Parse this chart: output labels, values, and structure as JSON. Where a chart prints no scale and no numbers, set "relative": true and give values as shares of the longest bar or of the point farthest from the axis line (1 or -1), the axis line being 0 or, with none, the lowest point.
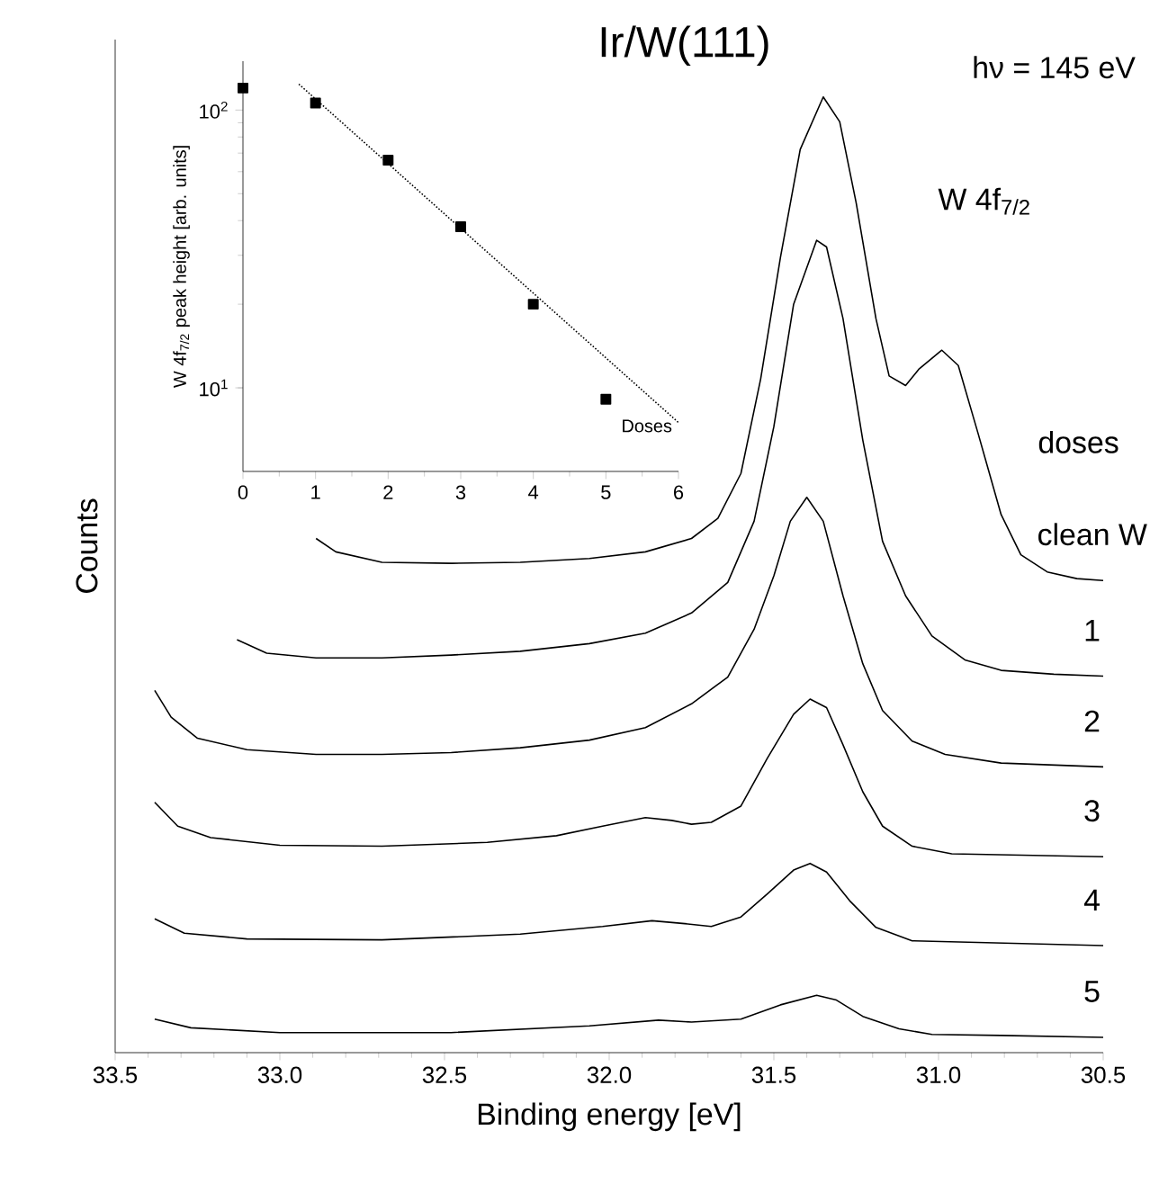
{
  "chart_data": [
    {
      "type": "line",
      "title": "Ir/W(111)",
      "xlabel": "Binding energy [eV]",
      "ylabel": "Counts",
      "relative": true,
      "line_style": "solid",
      "annotations": [
        "hν = 145 eV",
        "W 4f$_{7/2}$",
        "doses"
      ],
      "xlim": [
        33.5,
        30.5
      ],
      "xticks": [
        {
          "value": 33.5,
          "label": "33.5"
        },
        {
          "value": 33.0,
          "label": "33.0"
        },
        {
          "value": 32.5,
          "label": "32.5"
        },
        {
          "value": 32.0,
          "label": "32.0"
        },
        {
          "value": 31.5,
          "label": "31.5"
        },
        {
          "value": 31.0,
          "label": "31.0"
        },
        {
          "value": 30.5,
          "label": "30.5"
        }
      ],
      "series": [
        {
          "name": "clean W",
          "color": "#000000",
          "x": [
            32.89,
            32.83,
            32.69,
            32.48,
            32.27,
            32.06,
            31.89,
            31.75,
            31.67,
            31.6,
            31.54,
            31.48,
            31.42,
            31.35,
            31.3,
            31.25,
            31.19,
            31.15,
            31.1,
            31.06,
            30.99,
            30.94,
            30.88,
            30.81,
            30.75,
            30.67,
            30.58,
            30.5
          ],
          "values": [
            0.538,
            0.524,
            0.513,
            0.512,
            0.513,
            0.517,
            0.524,
            0.538,
            0.559,
            0.606,
            0.705,
            0.832,
            0.945,
            1.0,
            0.974,
            0.889,
            0.768,
            0.708,
            0.698,
            0.715,
            0.735,
            0.719,
            0.648,
            0.563,
            0.521,
            0.503,
            0.496,
            0.494
          ]
        },
        {
          "name": "1",
          "color": "#000000",
          "x": [
            33.13,
            33.04,
            32.89,
            32.69,
            32.48,
            32.27,
            32.06,
            31.89,
            31.75,
            31.64,
            31.56,
            31.5,
            31.44,
            31.37,
            31.34,
            31.29,
            31.23,
            31.17,
            31.1,
            31.02,
            30.92,
            30.81,
            30.65,
            30.5
          ],
          "values": [
            0.432,
            0.418,
            0.413,
            0.413,
            0.416,
            0.42,
            0.428,
            0.439,
            0.46,
            0.492,
            0.556,
            0.655,
            0.783,
            0.85,
            0.843,
            0.768,
            0.641,
            0.535,
            0.478,
            0.436,
            0.411,
            0.4,
            0.396,
            0.394
          ]
        },
        {
          "name": "2",
          "color": "#000000",
          "x": [
            33.38,
            33.33,
            33.25,
            33.1,
            32.89,
            32.69,
            32.48,
            32.27,
            32.06,
            31.89,
            31.75,
            31.64,
            31.56,
            31.5,
            31.45,
            31.4,
            31.35,
            31.29,
            31.23,
            31.17,
            31.08,
            30.98,
            30.81,
            30.5
          ],
          "values": [
            0.379,
            0.351,
            0.329,
            0.317,
            0.312,
            0.312,
            0.314,
            0.319,
            0.327,
            0.34,
            0.365,
            0.393,
            0.443,
            0.499,
            0.556,
            0.581,
            0.556,
            0.478,
            0.407,
            0.358,
            0.326,
            0.312,
            0.303,
            0.299
          ]
        },
        {
          "name": "3",
          "color": "#000000",
          "x": [
            33.38,
            33.31,
            33.21,
            33.0,
            32.69,
            32.37,
            32.16,
            32.02,
            31.89,
            31.81,
            31.75,
            31.69,
            31.6,
            31.52,
            31.44,
            31.39,
            31.34,
            31.29,
            31.23,
            31.17,
            31.08,
            30.96,
            30.5
          ],
          "values": [
            0.262,
            0.237,
            0.225,
            0.217,
            0.216,
            0.22,
            0.227,
            0.237,
            0.246,
            0.243,
            0.239,
            0.241,
            0.258,
            0.308,
            0.354,
            0.37,
            0.361,
            0.322,
            0.273,
            0.237,
            0.216,
            0.208,
            0.205
          ]
        },
        {
          "name": "4",
          "color": "#000000",
          "x": [
            33.38,
            33.29,
            33.1,
            32.69,
            32.27,
            32.02,
            31.87,
            31.77,
            31.69,
            31.6,
            31.52,
            31.44,
            31.39,
            31.34,
            31.27,
            31.19,
            31.08,
            30.5
          ],
          "values": [
            0.14,
            0.125,
            0.119,
            0.118,
            0.124,
            0.132,
            0.138,
            0.135,
            0.132,
            0.142,
            0.166,
            0.191,
            0.198,
            0.189,
            0.159,
            0.131,
            0.117,
            0.112
          ]
        },
        {
          "name": "5",
          "color": "#000000",
          "x": [
            33.38,
            33.27,
            33.0,
            32.48,
            32.06,
            31.85,
            31.75,
            31.6,
            31.48,
            31.37,
            31.31,
            31.23,
            31.12,
            31.02,
            30.81,
            30.5
          ],
          "values": [
            0.035,
            0.026,
            0.021,
            0.021,
            0.028,
            0.034,
            0.032,
            0.035,
            0.05,
            0.06,
            0.055,
            0.038,
            0.025,
            0.019,
            0.018,
            0.016
          ]
        }
      ]
    },
    {
      "type": "scatter",
      "xlabel": "Doses",
      "ylabel": "W 4f$_{7/2}$ peak height [arb. units]",
      "log": "y",
      "marker": "square",
      "xlim": [
        0,
        6
      ],
      "xticks": [
        0,
        1,
        2,
        3,
        4,
        5,
        6
      ],
      "ylim": [
        5,
        150
      ],
      "yticks": [
        {
          "value": 10,
          "label": "10$^{1}$"
        },
        {
          "value": 100,
          "label": "10$^{2}$"
        }
      ],
      "x": [
        0,
        1,
        2,
        3,
        4,
        5
      ],
      "series": [
        {
          "color": "#000000",
          "values": [
            120,
            106,
            66,
            38,
            20,
            9.1
          ]
        },
        {
          "type": "line",
          "marker": "none",
          "line_style": "dotted",
          "color": "#000000",
          "x": [
            0.77,
            6
          ],
          "values": [
            124,
            7.5
          ]
        }
      ]
    }
  ]
}
